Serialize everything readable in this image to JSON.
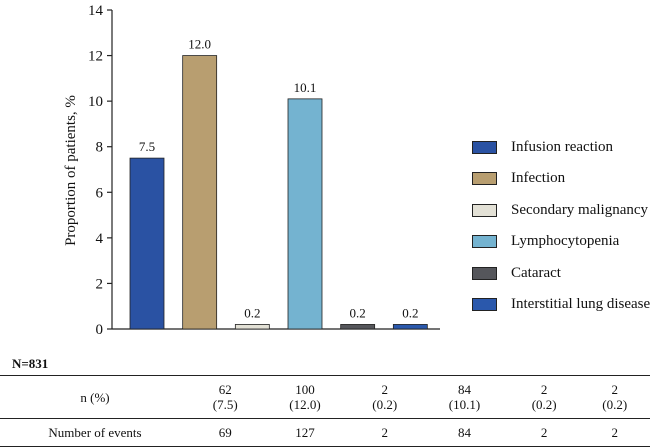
{
  "chart_data": {
    "type": "bar",
    "ylabel": "Proportion of patients, %",
    "xlabel": "",
    "ylim": [
      0,
      14
    ],
    "yticks": [
      0,
      2,
      4,
      6,
      8,
      10,
      12,
      14
    ],
    "categories": [
      "Infusion reaction",
      "Infection",
      "Secondary malignancy",
      "Lymphocytopenia",
      "Cataract",
      "Interstitial lung disease"
    ],
    "values": [
      7.5,
      12.0,
      0.2,
      10.1,
      0.2,
      0.2
    ],
    "value_labels": [
      "7.5",
      "12.0",
      "0.2",
      "10.1",
      "0.2",
      "0.2"
    ],
    "colors": [
      "#2a52a3",
      "#b89e70",
      "#e3e1d6",
      "#74b3d0",
      "#55565b",
      "#2a58ac"
    ],
    "legend_position": "right"
  },
  "table": {
    "n_label": "N=831",
    "rows": [
      {
        "label": "n (%)",
        "cells": [
          [
            "62",
            "(7.5)"
          ],
          [
            "100",
            "(12.0)"
          ],
          [
            "2",
            "(0.2)"
          ],
          [
            "84",
            "(10.1)"
          ],
          [
            "2",
            "(0.2)"
          ],
          [
            "2",
            "(0.2)"
          ]
        ]
      },
      {
        "label": "Number of events",
        "cells": [
          [
            "69"
          ],
          [
            "127"
          ],
          [
            "2"
          ],
          [
            "84"
          ],
          [
            "2"
          ],
          [
            "2"
          ]
        ]
      }
    ]
  }
}
